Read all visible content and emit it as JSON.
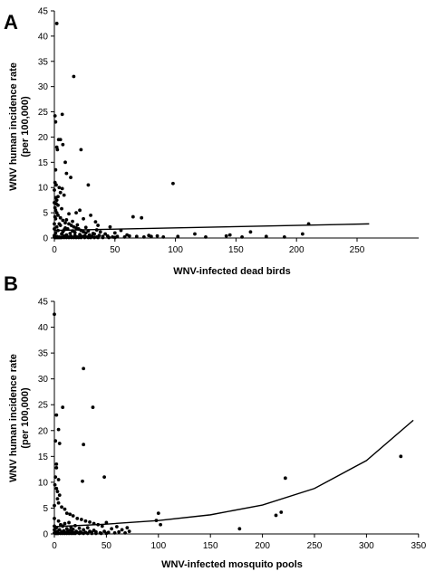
{
  "chart_data": [
    {
      "type": "scatter",
      "panel_label": "A",
      "xlabel": "WNV-infected dead birds",
      "ylabel_line1": "WNV human incidence rate",
      "ylabel_line2": "(per 100,000)",
      "xlim": [
        0,
        300
      ],
      "ylim": [
        0,
        45
      ],
      "x_ticks": [
        0,
        50,
        100,
        150,
        200,
        250
      ],
      "y_ticks": [
        0,
        5,
        10,
        15,
        20,
        25,
        30,
        35,
        40,
        45
      ],
      "grid": false,
      "points": [
        [
          2,
          42.5
        ],
        [
          16,
          32
        ],
        [
          6.5,
          24.5
        ],
        [
          0.5,
          24.2
        ],
        [
          1,
          23
        ],
        [
          3.5,
          19.5
        ],
        [
          2,
          18
        ],
        [
          2.5,
          17.5
        ],
        [
          22,
          17.5
        ],
        [
          5,
          19.5
        ],
        [
          7,
          18.5
        ],
        [
          9,
          15
        ],
        [
          10,
          12.8
        ],
        [
          1,
          13.5
        ],
        [
          0.5,
          11
        ],
        [
          1.5,
          10.5
        ],
        [
          4,
          10
        ],
        [
          6.5,
          9.8
        ],
        [
          5,
          9
        ],
        [
          8,
          8.5
        ],
        [
          13.5,
          12
        ],
        [
          18,
          5
        ],
        [
          21,
          5.5
        ],
        [
          28,
          10.5
        ],
        [
          1,
          8
        ],
        [
          2,
          7.5
        ],
        [
          3,
          6.5
        ],
        [
          0.5,
          6
        ],
        [
          1,
          5.5
        ],
        [
          2,
          5
        ],
        [
          3,
          4.5
        ],
        [
          5,
          4
        ],
        [
          7,
          3.5
        ],
        [
          9,
          3
        ],
        [
          12,
          2.8
        ],
        [
          14,
          2.5
        ],
        [
          16,
          2.2
        ],
        [
          18,
          2
        ],
        [
          20,
          1.8
        ],
        [
          22,
          1.5
        ],
        [
          24,
          1.2
        ],
        [
          26,
          1
        ],
        [
          30,
          4.5
        ],
        [
          34,
          3.2
        ],
        [
          36,
          2.5
        ],
        [
          38,
          1.2
        ],
        [
          42,
          0.8
        ],
        [
          46,
          2.2
        ],
        [
          50,
          1
        ],
        [
          55,
          1.5
        ],
        [
          60,
          0.6
        ],
        [
          65,
          4.2
        ],
        [
          72,
          4
        ],
        [
          78,
          0.5
        ],
        [
          85,
          0.4
        ],
        [
          98,
          10.8
        ],
        [
          102,
          0.3
        ],
        [
          116,
          0.8
        ],
        [
          125,
          0.2
        ],
        [
          142,
          0.4
        ],
        [
          145,
          0.6
        ],
        [
          155,
          0.2
        ],
        [
          162,
          1.2
        ],
        [
          175,
          0.3
        ],
        [
          190,
          0.2
        ],
        [
          205,
          0.8
        ],
        [
          210,
          2.8
        ],
        [
          0,
          0.5
        ],
        [
          1,
          1
        ],
        [
          2,
          0.3
        ],
        [
          3,
          1.5
        ],
        [
          4,
          0.2
        ],
        [
          5,
          2.5
        ],
        [
          6,
          0.8
        ],
        [
          7,
          1.2
        ],
        [
          8,
          0.4
        ],
        [
          9,
          2
        ],
        [
          10,
          0.6
        ],
        [
          11,
          1.8
        ],
        [
          12,
          0.2
        ],
        [
          13,
          0.9
        ],
        [
          14,
          0.3
        ],
        [
          15,
          1.4
        ],
        [
          17,
          0.5
        ],
        [
          19,
          0.2
        ],
        [
          21,
          0.7
        ],
        [
          23,
          0.3
        ],
        [
          25,
          0.4
        ],
        [
          27,
          0.2
        ],
        [
          29,
          0.6
        ],
        [
          31,
          0.3
        ],
        [
          33,
          0.8
        ],
        [
          35,
          0.2
        ],
        [
          37,
          0.5
        ],
        [
          40,
          0.3
        ],
        [
          44,
          0.4
        ],
        [
          48,
          0.2
        ],
        [
          52,
          0.3
        ],
        [
          58,
          0.2
        ],
        [
          62,
          0.4
        ],
        [
          68,
          0.3
        ],
        [
          74,
          0.2
        ],
        [
          80,
          0.3
        ],
        [
          90,
          0.2
        ],
        [
          0,
          2.8
        ],
        [
          1,
          3.8
        ],
        [
          2,
          2.2
        ],
        [
          0.5,
          4.2
        ],
        [
          1.5,
          6.8
        ],
        [
          3,
          8.2
        ],
        [
          4,
          2.8
        ],
        [
          6,
          5.8
        ],
        [
          8,
          1.6
        ],
        [
          10,
          3.6
        ],
        [
          12,
          4.8
        ],
        [
          15,
          3.3
        ],
        [
          17,
          1.1
        ],
        [
          19,
          2.6
        ],
        [
          24,
          3.8
        ],
        [
          26,
          2.1
        ],
        [
          28,
          1.4
        ],
        [
          32,
          0.9
        ],
        [
          35,
          1.6
        ],
        [
          0,
          9.5
        ],
        [
          0,
          7
        ],
        [
          0,
          1.8
        ],
        [
          0,
          0.2
        ],
        [
          0.5,
          0.1
        ],
        [
          1,
          0.1
        ],
        [
          2,
          0.1
        ],
        [
          3,
          0.1
        ],
        [
          4,
          0.1
        ],
        [
          5,
          0.1
        ],
        [
          6,
          0.1
        ],
        [
          8,
          0.1
        ],
        [
          10,
          0.1
        ],
        [
          12,
          0.1
        ],
        [
          14,
          0.1
        ],
        [
          16,
          0.1
        ],
        [
          18,
          0.1
        ],
        [
          20,
          0.1
        ],
        [
          22,
          0.1
        ],
        [
          25,
          0.1
        ],
        [
          28,
          0.1
        ],
        [
          30,
          0.1
        ],
        [
          33,
          0.1
        ],
        [
          36,
          0.1
        ],
        [
          40,
          0.1
        ],
        [
          45,
          0.1
        ],
        [
          50,
          0.1
        ]
      ],
      "trend": [
        [
          0,
          1.5
        ],
        [
          260,
          2.8
        ]
      ],
      "trend_shape": "linear"
    },
    {
      "type": "scatter",
      "panel_label": "B",
      "xlabel": "WNV-infected mosquito pools",
      "ylabel_line1": "WNV human incidence rate",
      "ylabel_line2": "(per 100,000)",
      "xlim": [
        0,
        350
      ],
      "ylim": [
        0,
        45
      ],
      "x_ticks": [
        0,
        50,
        100,
        150,
        200,
        250,
        300,
        350
      ],
      "y_ticks": [
        0,
        5,
        10,
        15,
        20,
        25,
        30,
        35,
        40,
        45
      ],
      "grid": false,
      "points": [
        [
          0,
          42.5
        ],
        [
          28,
          32
        ],
        [
          37,
          24.5
        ],
        [
          8,
          24.5
        ],
        [
          2,
          23
        ],
        [
          4,
          20.2
        ],
        [
          1,
          18
        ],
        [
          5,
          17.5
        ],
        [
          28,
          17.3
        ],
        [
          2,
          13.5
        ],
        [
          2,
          12.8
        ],
        [
          1,
          11
        ],
        [
          4,
          10.5
        ],
        [
          27,
          10.2
        ],
        [
          48,
          11
        ],
        [
          0.5,
          9.5
        ],
        [
          2,
          8.8
        ],
        [
          3,
          8.2
        ],
        [
          5,
          7.5
        ],
        [
          3,
          6.8
        ],
        [
          4,
          6
        ],
        [
          7,
          5.2
        ],
        [
          10,
          4.8
        ],
        [
          12,
          4
        ],
        [
          15,
          3.8
        ],
        [
          18,
          3.5
        ],
        [
          22,
          3
        ],
        [
          26,
          2.8
        ],
        [
          30,
          2.5
        ],
        [
          34,
          2.3
        ],
        [
          38,
          2
        ],
        [
          42,
          1.8
        ],
        [
          46,
          1.5
        ],
        [
          50,
          2.2
        ],
        [
          55,
          1
        ],
        [
          60,
          1.4
        ],
        [
          65,
          0.8
        ],
        [
          70,
          1.2
        ],
        [
          100,
          4
        ],
        [
          102,
          1.8
        ],
        [
          98,
          2.6
        ],
        [
          178,
          1
        ],
        [
          213,
          3.6
        ],
        [
          218,
          4.2
        ],
        [
          222,
          10.8
        ],
        [
          333,
          15
        ],
        [
          1,
          0.3
        ],
        [
          2,
          1.2
        ],
        [
          3,
          0.5
        ],
        [
          4,
          2.5
        ],
        [
          5,
          0.8
        ],
        [
          6,
          1.8
        ],
        [
          7,
          0.4
        ],
        [
          8,
          1.5
        ],
        [
          9,
          0.6
        ],
        [
          10,
          2
        ],
        [
          11,
          0.3
        ],
        [
          12,
          1
        ],
        [
          13,
          0.5
        ],
        [
          14,
          2.2
        ],
        [
          15,
          0.7
        ],
        [
          16,
          1.3
        ],
        [
          17,
          0.4
        ],
        [
          18,
          0.9
        ],
        [
          19,
          0.2
        ],
        [
          20,
          1.6
        ],
        [
          21,
          0.5
        ],
        [
          22,
          0.3
        ],
        [
          24,
          1.1
        ],
        [
          25,
          0.4
        ],
        [
          26,
          0.2
        ],
        [
          28,
          0.8
        ],
        [
          30,
          0.3
        ],
        [
          32,
          1.2
        ],
        [
          34,
          0.5
        ],
        [
          36,
          0.3
        ],
        [
          38,
          0.7
        ],
        [
          40,
          0.4
        ],
        [
          44,
          0.2
        ],
        [
          48,
          0.5
        ],
        [
          52,
          0.3
        ],
        [
          58,
          0.2
        ],
        [
          62,
          0.4
        ],
        [
          68,
          0.2
        ],
        [
          72,
          0.5
        ],
        [
          0,
          5.5
        ],
        [
          0,
          3
        ],
        [
          0,
          1.5
        ],
        [
          0,
          0.8
        ],
        [
          0,
          0.2
        ],
        [
          1,
          0.1
        ],
        [
          2,
          0.1
        ],
        [
          3,
          0.1
        ],
        [
          4,
          0.1
        ],
        [
          6,
          0.1
        ],
        [
          8,
          0.1
        ],
        [
          10,
          0.1
        ],
        [
          12,
          0.1
        ],
        [
          14,
          0.1
        ],
        [
          16,
          0.1
        ],
        [
          18,
          0.1
        ],
        [
          20,
          0.1
        ],
        [
          24,
          0.1
        ],
        [
          28,
          0.1
        ],
        [
          32,
          0.1
        ],
        [
          36,
          0.1
        ],
        [
          40,
          0.1
        ],
        [
          45,
          0.1
        ],
        [
          50,
          0.1
        ]
      ],
      "trend_shape": "exponential",
      "trend": [
        [
          0,
          1.4
        ],
        [
          50,
          1.9
        ],
        [
          100,
          2.6
        ],
        [
          150,
          3.7
        ],
        [
          200,
          5.6
        ],
        [
          250,
          8.8
        ],
        [
          300,
          14.2
        ],
        [
          345,
          22
        ]
      ]
    }
  ]
}
